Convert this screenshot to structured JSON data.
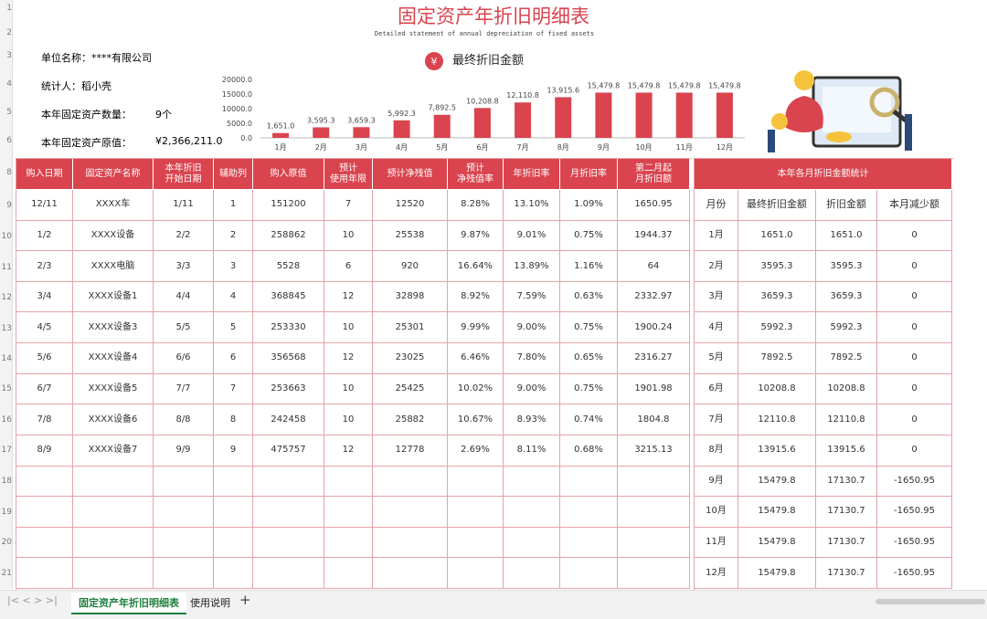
{
  "header": {
    "title": "固定资产年折旧明细表",
    "subtitle": "Detailed statement of annual depreciation of fixed assets"
  },
  "row_numbers": [
    "1",
    "2",
    "3",
    "4",
    "5",
    "6",
    "8",
    "9",
    "10",
    "11",
    "12",
    "13",
    "14",
    "15",
    "16",
    "17",
    "18",
    "19",
    "20",
    "21"
  ],
  "info": {
    "company": "单位名称：****有限公司",
    "person": "统计人：稻小壳",
    "count_label": "本年固定资产数量：",
    "count_value": "9个",
    "total_label": "本年固定资产原值：",
    "total_value": "¥2,366,211.0"
  },
  "chart_badge": "¥",
  "chart_data": {
    "type": "bar",
    "title": "最终折旧金额",
    "color": "#d9444e",
    "categories": [
      "1月",
      "2月",
      "3月",
      "4月",
      "5月",
      "6月",
      "7月",
      "8月",
      "9月",
      "10月",
      "11月",
      "12月"
    ],
    "values": [
      1651.0,
      3595.3,
      3659.3,
      5992.3,
      7892.5,
      10208.8,
      12110.8,
      13915.6,
      15479.8,
      15479.8,
      15479.8,
      15479.8
    ],
    "value_labels": [
      "1,651.0",
      "3,595.3",
      "3,659.3",
      "5,992.3",
      "7,892.5",
      "10,208.8",
      "12,110.8",
      "13,915.6",
      "15,479.8",
      "15,479.8",
      "15,479.8",
      "15,479.8"
    ],
    "ylim": [
      0,
      20000
    ],
    "yticks": [
      {
        "value": 0,
        "label": "0.0"
      },
      {
        "value": 5000,
        "label": "5000.0"
      },
      {
        "value": 10000,
        "label": "10000.0"
      },
      {
        "value": 15000,
        "label": "15000.0"
      },
      {
        "value": 20000,
        "label": "20000.0"
      }
    ]
  },
  "table": {
    "headers": [
      "购入日期",
      "固定资产名称",
      "本年折旧\n开始日期",
      "辅助列",
      "购入原值",
      "预计\n使用年限",
      "预计净残值",
      "预计\n净残值率",
      "年折旧率",
      "月折旧率",
      "第二月起\n月折旧额"
    ],
    "rows": [
      [
        "12/11",
        "XXXX车",
        "1/11",
        "1",
        "151200",
        "7",
        "12520",
        "8.28%",
        "13.10%",
        "1.09%",
        "1650.95"
      ],
      [
        "1/2",
        "XXXX设备",
        "2/2",
        "2",
        "258862",
        "10",
        "25538",
        "9.87%",
        "9.01%",
        "0.75%",
        "1944.37"
      ],
      [
        "2/3",
        "XXXX电脑",
        "3/3",
        "3",
        "5528",
        "6",
        "920",
        "16.64%",
        "13.89%",
        "1.16%",
        "64"
      ],
      [
        "3/4",
        "XXXX设备1",
        "4/4",
        "4",
        "368845",
        "12",
        "32898",
        "8.92%",
        "7.59%",
        "0.63%",
        "2332.97"
      ],
      [
        "4/5",
        "XXXX设备3",
        "5/5",
        "5",
        "253330",
        "10",
        "25301",
        "9.99%",
        "9.00%",
        "0.75%",
        "1900.24"
      ],
      [
        "5/6",
        "XXXX设备4",
        "6/6",
        "6",
        "356568",
        "12",
        "23025",
        "6.46%",
        "7.80%",
        "0.65%",
        "2316.27"
      ],
      [
        "6/7",
        "XXXX设备5",
        "7/7",
        "7",
        "253663",
        "10",
        "25425",
        "10.02%",
        "9.00%",
        "0.75%",
        "1901.98"
      ],
      [
        "7/8",
        "XXXX设备6",
        "8/8",
        "8",
        "242458",
        "10",
        "25882",
        "10.67%",
        "8.93%",
        "0.74%",
        "1804.8"
      ],
      [
        "8/9",
        "XXXX设备7",
        "9/9",
        "9",
        "475757",
        "12",
        "12778",
        "2.69%",
        "8.11%",
        "0.68%",
        "3215.13"
      ]
    ]
  },
  "monthly": {
    "title": "本年各月折旧金额统计",
    "headers": [
      "月份",
      "最终折旧金额",
      "折旧金额",
      "本月减少额"
    ],
    "rows": [
      [
        "1月",
        "1651.0",
        "1651.0",
        "0"
      ],
      [
        "2月",
        "3595.3",
        "3595.3",
        "0"
      ],
      [
        "3月",
        "3659.3",
        "3659.3",
        "0"
      ],
      [
        "4月",
        "5992.3",
        "5992.3",
        "0"
      ],
      [
        "5月",
        "7892.5",
        "7892.5",
        "0"
      ],
      [
        "6月",
        "10208.8",
        "10208.8",
        "0"
      ],
      [
        "7月",
        "12110.8",
        "12110.8",
        "0"
      ],
      [
        "8月",
        "13915.6",
        "13915.6",
        "0"
      ],
      [
        "9月",
        "15479.8",
        "17130.7",
        "-1650.95"
      ],
      [
        "10月",
        "15479.8",
        "17130.7",
        "-1650.95"
      ],
      [
        "11月",
        "15479.8",
        "17130.7",
        "-1650.95"
      ],
      [
        "12月",
        "15479.8",
        "17130.7",
        "-1650.95"
      ]
    ]
  },
  "tabs": [
    "固定资产年折旧明细表",
    "使用说明"
  ]
}
